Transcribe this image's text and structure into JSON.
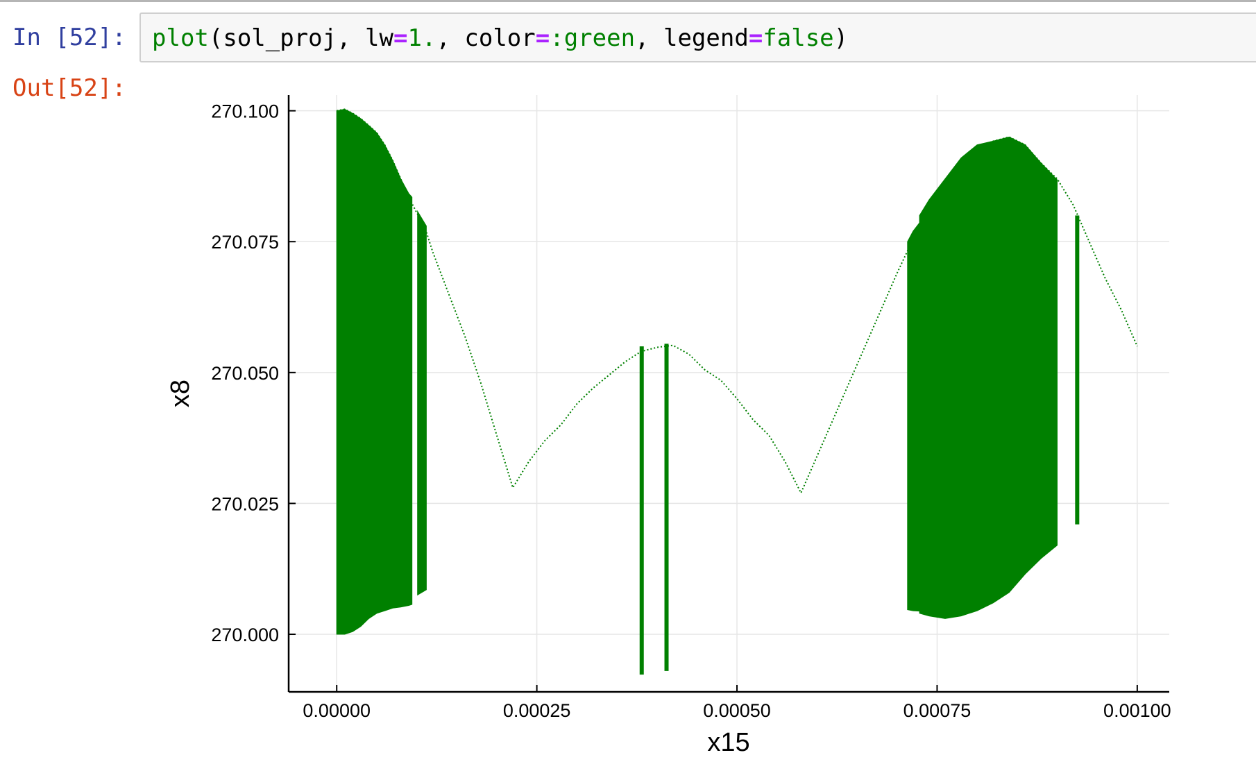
{
  "notebook": {
    "in_prompt": "In [52]:",
    "out_prompt": "Out[52]:",
    "code_tokens": [
      {
        "text": "plot",
        "kind": "builtin"
      },
      {
        "text": "(sol_proj, lw",
        "kind": "plain"
      },
      {
        "text": "=",
        "kind": "op"
      },
      {
        "text": "1.",
        "kind": "num"
      },
      {
        "text": ", color",
        "kind": "plain"
      },
      {
        "text": "=",
        "kind": "op"
      },
      {
        "text": ":green",
        "kind": "sym"
      },
      {
        "text": ", legend",
        "kind": "plain"
      },
      {
        "text": "=",
        "kind": "op"
      },
      {
        "text": "false",
        "kind": "kw"
      },
      {
        "text": ")",
        "kind": "plain"
      }
    ]
  },
  "colors": {
    "series": "#008000",
    "grid": "#e6e6e6",
    "axis": "#000000"
  },
  "chart_data": {
    "type": "line",
    "xlabel": "x15",
    "ylabel": "x8",
    "xlim": [
      -6e-05,
      0.00104
    ],
    "ylim": [
      269.989,
      270.103
    ],
    "xticks": [
      0,
      0.00025,
      0.0005,
      0.00075,
      0.001
    ],
    "xtick_labels": [
      "0.00000",
      "0.00025",
      "0.00050",
      "0.00075",
      "0.00100"
    ],
    "yticks": [
      270.0,
      270.025,
      270.05,
      270.075,
      270.1
    ],
    "ytick_labels": [
      "270.000",
      "270.025",
      "270.050",
      "270.075",
      "270.100"
    ],
    "grid": true,
    "legend": false,
    "envelope_upper": [
      [
        0.0,
        270.1
      ],
      [
        1e-05,
        270.1003
      ],
      [
        2e-05,
        270.0995
      ],
      [
        3e-05,
        270.0985
      ],
      [
        4e-05,
        270.0972
      ],
      [
        5e-05,
        270.0958
      ],
      [
        6e-05,
        270.0935
      ],
      [
        7e-05,
        270.0905
      ],
      [
        8e-05,
        270.087
      ],
      [
        9e-05,
        270.0835
      ],
      [
        0.0001,
        270.0805
      ],
      [
        0.00011,
        270.0778
      ],
      [
        0.00012,
        270.073
      ],
      [
        0.00014,
        270.065
      ],
      [
        0.00016,
        270.057
      ],
      [
        0.00018,
        270.048
      ],
      [
        0.0002,
        270.038
      ],
      [
        0.00022,
        270.028
      ],
      [
        0.00024,
        270.033
      ],
      [
        0.00026,
        270.037
      ],
      [
        0.00028,
        270.04
      ],
      [
        0.0003,
        270.044
      ],
      [
        0.00032,
        270.047
      ],
      [
        0.00034,
        270.0495
      ],
      [
        0.00036,
        270.052
      ],
      [
        0.00038,
        270.054
      ],
      [
        0.0004,
        270.0548
      ],
      [
        0.00042,
        270.0552
      ],
      [
        0.00044,
        270.0535
      ],
      [
        0.00046,
        270.0505
      ],
      [
        0.00048,
        270.0485
      ],
      [
        0.0005,
        270.045
      ],
      [
        0.00052,
        270.041
      ],
      [
        0.00054,
        270.038
      ],
      [
        0.00056,
        270.033
      ],
      [
        0.00058,
        270.027
      ],
      [
        0.0006,
        270.034
      ],
      [
        0.00062,
        270.041
      ],
      [
        0.00064,
        270.048
      ],
      [
        0.00066,
        270.055
      ],
      [
        0.00068,
        270.062
      ],
      [
        0.0007,
        270.069
      ],
      [
        0.00072,
        270.0755
      ],
      [
        0.00074,
        270.0805
      ],
      [
        0.00076,
        270.085
      ],
      [
        0.00078,
        270.0895
      ],
      [
        0.0008,
        270.093
      ],
      [
        0.00082,
        270.0942
      ],
      [
        0.00084,
        270.095
      ],
      [
        0.00086,
        270.0935
      ],
      [
        0.00088,
        270.09
      ],
      [
        0.0009,
        270.087
      ],
      [
        0.00092,
        270.082
      ],
      [
        0.00094,
        270.075
      ],
      [
        0.00096,
        270.068
      ],
      [
        0.00098,
        270.062
      ],
      [
        0.001,
        270.055
      ]
    ],
    "filled_regions": [
      {
        "x": [
          0.0,
          1e-05,
          2e-05,
          3e-05,
          4e-05,
          5e-05,
          6e-05,
          7e-05,
          8e-05,
          9e-05,
          9.4e-05
        ],
        "upper": [
          270.1,
          270.1003,
          270.0995,
          270.0985,
          270.0972,
          270.0958,
          270.0935,
          270.0905,
          270.087,
          270.0842,
          270.0835
        ],
        "lower": [
          270.0,
          270.0,
          270.0005,
          270.0015,
          270.003,
          270.004,
          270.0045,
          270.005,
          270.0052,
          270.0055,
          270.0057
        ]
      },
      {
        "x": [
          0.000101,
          0.000112
        ],
        "upper": [
          270.0808,
          270.078
        ],
        "lower": [
          270.0075,
          270.0085
        ]
      },
      {
        "x": [
          0.000713,
          0.00072,
          0.00073,
          0.000734
        ],
        "upper": [
          270.075,
          270.077,
          270.079,
          270.0798
        ],
        "lower": [
          270.0047,
          270.0045,
          270.0044,
          270.0043
        ]
      },
      {
        "x": [
          0.000728,
          0.00074,
          0.00076,
          0.00078,
          0.0008,
          0.00082,
          0.00084,
          0.00086,
          0.00088,
          0.0009
        ],
        "upper": [
          270.08,
          270.083,
          270.087,
          270.091,
          270.0935,
          270.0942,
          270.095,
          270.0935,
          270.09,
          270.0868
        ],
        "lower": [
          270.004,
          270.0035,
          270.003,
          270.0035,
          270.0045,
          270.006,
          270.008,
          270.0115,
          270.0145,
          270.017
        ]
      }
    ],
    "vertical_segments": [
      {
        "x": 0.000381,
        "y_top": 270.055,
        "y_bottom": 269.9923
      },
      {
        "x": 0.000412,
        "y_top": 270.0555,
        "y_bottom": 269.993
      },
      {
        "x": 0.000925,
        "y_top": 270.08,
        "y_bottom": 270.021
      }
    ]
  }
}
